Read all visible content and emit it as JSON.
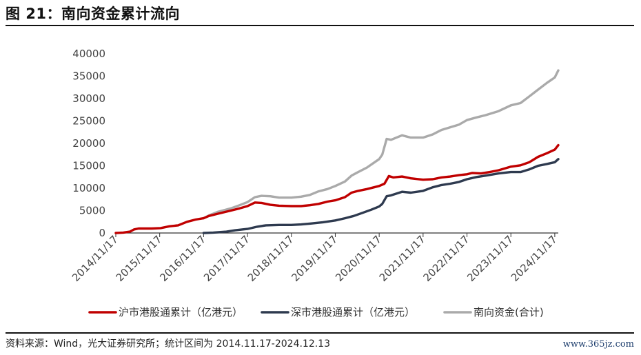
{
  "header": {
    "title": "图 21：南向资金累计流向"
  },
  "footer": {
    "source": "资料来源：Wind，光大证券研究所；统计区间为 2014.11.17-2024.12.13",
    "watermark": "www.365jz.com"
  },
  "colors": {
    "sh": "#c00000",
    "sz": "#2e3a4f",
    "total": "#aaaaaa",
    "axis": "#333333"
  },
  "chart_data": {
    "type": "line",
    "title": "",
    "xlabel": "",
    "ylabel": "",
    "x_range": [
      2014.88,
      2024.96
    ],
    "ylim": [
      0,
      40000
    ],
    "y_ticks": [
      0,
      5000,
      10000,
      15000,
      20000,
      25000,
      30000,
      35000,
      40000
    ],
    "x_ticks": [
      {
        "label": "2014/11/17",
        "x": 2014.88
      },
      {
        "label": "2015/11/17",
        "x": 2015.88
      },
      {
        "label": "2016/11/17",
        "x": 2016.88
      },
      {
        "label": "2017/11/17",
        "x": 2017.88
      },
      {
        "label": "2018/11/17",
        "x": 2018.88
      },
      {
        "label": "2019/11/17",
        "x": 2019.88
      },
      {
        "label": "2020/11/17",
        "x": 2020.88
      },
      {
        "label": "2021/11/17",
        "x": 2021.88
      },
      {
        "label": "2022/11/17",
        "x": 2022.88
      },
      {
        "label": "2023/11/17",
        "x": 2023.88
      },
      {
        "label": "2024/11/17",
        "x": 2024.88
      }
    ],
    "grid": false,
    "legend_position": "bottom",
    "series": [
      {
        "name": "沪市港股通累计（亿港元）",
        "color": "#c00000",
        "points": [
          [
            2014.88,
            0
          ],
          [
            2015.05,
            100
          ],
          [
            2015.2,
            300
          ],
          [
            2015.3,
            800
          ],
          [
            2015.4,
            1000
          ],
          [
            2015.7,
            1000
          ],
          [
            2015.9,
            1100
          ],
          [
            2016.1,
            1500
          ],
          [
            2016.3,
            1700
          ],
          [
            2016.5,
            2500
          ],
          [
            2016.7,
            3000
          ],
          [
            2016.88,
            3300
          ],
          [
            2017.0,
            3800
          ],
          [
            2017.2,
            4300
          ],
          [
            2017.5,
            5000
          ],
          [
            2017.7,
            5500
          ],
          [
            2017.88,
            6000
          ],
          [
            2018.05,
            6800
          ],
          [
            2018.2,
            6700
          ],
          [
            2018.4,
            6300
          ],
          [
            2018.6,
            6100
          ],
          [
            2018.88,
            6000
          ],
          [
            2019.1,
            6000
          ],
          [
            2019.3,
            6200
          ],
          [
            2019.5,
            6500
          ],
          [
            2019.7,
            7000
          ],
          [
            2019.88,
            7300
          ],
          [
            2020.1,
            8000
          ],
          [
            2020.25,
            9000
          ],
          [
            2020.4,
            9400
          ],
          [
            2020.6,
            9800
          ],
          [
            2020.88,
            10500
          ],
          [
            2021.0,
            11000
          ],
          [
            2021.1,
            12700
          ],
          [
            2021.2,
            12400
          ],
          [
            2021.4,
            12600
          ],
          [
            2021.6,
            12200
          ],
          [
            2021.88,
            11900
          ],
          [
            2022.1,
            12000
          ],
          [
            2022.3,
            12400
          ],
          [
            2022.5,
            12600
          ],
          [
            2022.7,
            12900
          ],
          [
            2022.88,
            13100
          ],
          [
            2023.0,
            13400
          ],
          [
            2023.2,
            13300
          ],
          [
            2023.4,
            13600
          ],
          [
            2023.6,
            14000
          ],
          [
            2023.88,
            14800
          ],
          [
            2024.1,
            15100
          ],
          [
            2024.3,
            15800
          ],
          [
            2024.5,
            17000
          ],
          [
            2024.7,
            17800
          ],
          [
            2024.88,
            18600
          ],
          [
            2024.96,
            19600
          ]
        ]
      },
      {
        "name": "深市港股通累计（亿港元）",
        "color": "#2e3a4f",
        "points": [
          [
            2016.88,
            0
          ],
          [
            2017.1,
            100
          ],
          [
            2017.4,
            300
          ],
          [
            2017.6,
            600
          ],
          [
            2017.88,
            900
          ],
          [
            2018.1,
            1400
          ],
          [
            2018.3,
            1700
          ],
          [
            2018.6,
            1800
          ],
          [
            2018.88,
            1800
          ],
          [
            2019.1,
            1900
          ],
          [
            2019.3,
            2100
          ],
          [
            2019.6,
            2400
          ],
          [
            2019.88,
            2800
          ],
          [
            2020.1,
            3300
          ],
          [
            2020.3,
            3800
          ],
          [
            2020.5,
            4500
          ],
          [
            2020.7,
            5200
          ],
          [
            2020.88,
            5900
          ],
          [
            2020.95,
            6500
          ],
          [
            2021.05,
            8200
          ],
          [
            2021.15,
            8400
          ],
          [
            2021.4,
            9200
          ],
          [
            2021.6,
            9000
          ],
          [
            2021.88,
            9400
          ],
          [
            2022.1,
            10200
          ],
          [
            2022.3,
            10700
          ],
          [
            2022.5,
            11000
          ],
          [
            2022.7,
            11400
          ],
          [
            2022.88,
            12000
          ],
          [
            2023.1,
            12500
          ],
          [
            2023.3,
            12800
          ],
          [
            2023.6,
            13300
          ],
          [
            2023.88,
            13600
          ],
          [
            2024.1,
            13600
          ],
          [
            2024.3,
            14200
          ],
          [
            2024.5,
            15000
          ],
          [
            2024.7,
            15400
          ],
          [
            2024.88,
            15800
          ],
          [
            2024.96,
            16500
          ]
        ]
      },
      {
        "name": "南向资金(合计)",
        "color": "#aaaaaa",
        "points": [
          [
            2016.88,
            3300
          ],
          [
            2017.0,
            3900
          ],
          [
            2017.2,
            4700
          ],
          [
            2017.5,
            5500
          ],
          [
            2017.7,
            6200
          ],
          [
            2017.88,
            6900
          ],
          [
            2018.05,
            8000
          ],
          [
            2018.2,
            8300
          ],
          [
            2018.4,
            8200
          ],
          [
            2018.6,
            7900
          ],
          [
            2018.88,
            7900
          ],
          [
            2019.1,
            8100
          ],
          [
            2019.3,
            8500
          ],
          [
            2019.5,
            9300
          ],
          [
            2019.7,
            9800
          ],
          [
            2019.88,
            10500
          ],
          [
            2020.1,
            11500
          ],
          [
            2020.25,
            12800
          ],
          [
            2020.4,
            13600
          ],
          [
            2020.6,
            14600
          ],
          [
            2020.88,
            16500
          ],
          [
            2020.95,
            17500
          ],
          [
            2021.05,
            21000
          ],
          [
            2021.15,
            20800
          ],
          [
            2021.4,
            21800
          ],
          [
            2021.6,
            21300
          ],
          [
            2021.88,
            21300
          ],
          [
            2022.1,
            22000
          ],
          [
            2022.3,
            23000
          ],
          [
            2022.5,
            23600
          ],
          [
            2022.7,
            24200
          ],
          [
            2022.88,
            25200
          ],
          [
            2023.1,
            25800
          ],
          [
            2023.3,
            26300
          ],
          [
            2023.6,
            27200
          ],
          [
            2023.88,
            28500
          ],
          [
            2024.1,
            29000
          ],
          [
            2024.3,
            30500
          ],
          [
            2024.5,
            32000
          ],
          [
            2024.7,
            33500
          ],
          [
            2024.88,
            34700
          ],
          [
            2024.96,
            36300
          ]
        ]
      }
    ]
  }
}
